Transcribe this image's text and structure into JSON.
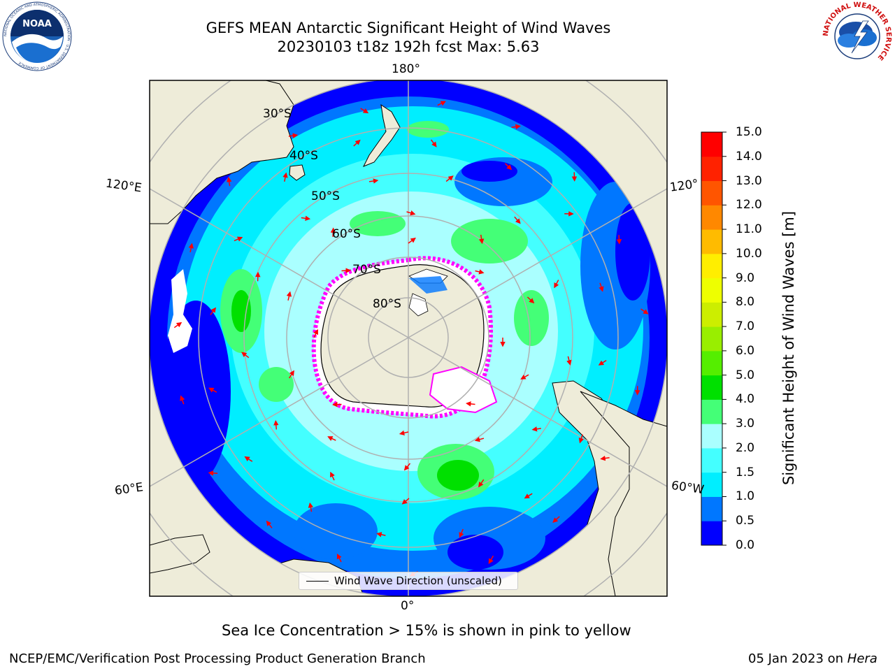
{
  "header": {
    "title_line1": "GEFS MEAN Antarctic Significant Height of Wind Waves",
    "title_line2": "20230103 t18z 192h fcst   Max: 5.63"
  },
  "logos": {
    "noaa_text": "NOAA",
    "noaa_ring_text": "NATIONAL OCEANIC AND ATMOSPHERIC ADMINISTRATION · U.S. DEPARTMENT OF COMMERCE",
    "nws_ring_text": "NATIONAL WEATHER SERVICE"
  },
  "map": {
    "longitude_labels": {
      "top": "180°",
      "bottom": "0°",
      "upper_left": "120°E",
      "lower_left": "60°E",
      "upper_right": "120°",
      "lower_right": "60°W"
    },
    "latitude_labels": [
      "30°S",
      "40°S",
      "50°S",
      "60°S",
      "70°S",
      "80°S"
    ],
    "legend_label": "Wind Wave Direction (unscaled)",
    "colors": {
      "land": "#eeecd9",
      "sea_ice": "#ffffff",
      "ice_edge": "#ff00ff",
      "arrow": "#ff0000",
      "grid": "#b0b0b0"
    }
  },
  "colorbar": {
    "label": "Significant Height of Wind Waves [m]",
    "ticks": [
      "15.0",
      "14.0",
      "13.0",
      "12.0",
      "11.0",
      "10.0",
      "9.0",
      "8.0",
      "7.0",
      "6.0",
      "5.0",
      "4.0",
      "3.0",
      "2.0",
      "1.5",
      "1.0",
      "0.5",
      "0.0"
    ],
    "colors_bottom_to_top": [
      "#0000ff",
      "#0077ff",
      "#00eeff",
      "#44ffff",
      "#aaffff",
      "#44ff77",
      "#00e000",
      "#55ee00",
      "#99ee00",
      "#ccee00",
      "#eeff00",
      "#ffee00",
      "#ffbb00",
      "#ff8800",
      "#ff5500",
      "#ff2200",
      "#ff0000"
    ]
  },
  "captions": {
    "ice_note": "Sea Ice Concentration > 15% is shown in pink to yellow",
    "credit": "NCEP/EMC/Verification Post Processing Product Generation Branch",
    "date": "05 Jan 2023 on ",
    "machine": "Hera"
  }
}
